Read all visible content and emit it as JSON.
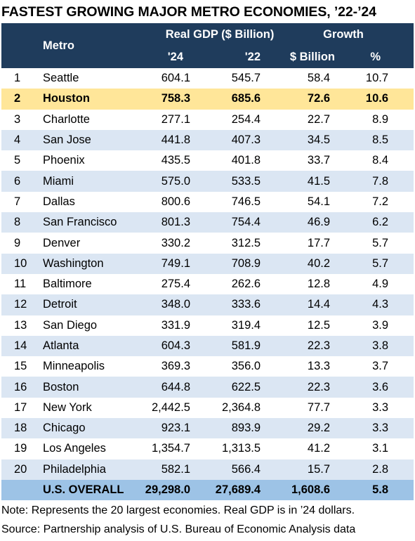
{
  "title": "FASTEST GROWING MAJOR METRO ECONOMIES, ’22-’24",
  "header": {
    "metro": "Metro",
    "gdp_group": "Real GDP ($ Billion)",
    "growth_group": "Growth",
    "gdp24": "'24",
    "gdp22": "'22",
    "dollar": "$ Billion",
    "pct": "%"
  },
  "colors": {
    "header_bg": "#1f3c5c",
    "stripe": "#dbe6f3",
    "highlight": "#ffe699",
    "total": "#9dc3e6"
  },
  "chart_data": {
    "type": "table",
    "title": "FASTEST GROWING MAJOR METRO ECONOMIES, ’22-’24",
    "columns": [
      "",
      "Metro",
      "'24",
      "'22",
      "$ Billion",
      "%"
    ],
    "rows": [
      {
        "rank": "1",
        "metro": "Seattle",
        "gdp24": "604.1",
        "gdp22": "545.7",
        "dollar": "58.4",
        "pct": "10.7"
      },
      {
        "rank": "2",
        "metro": "Houston",
        "gdp24": "758.3",
        "gdp22": "685.6",
        "dollar": "72.6",
        "pct": "10.6",
        "highlight": true
      },
      {
        "rank": "3",
        "metro": "Charlotte",
        "gdp24": "277.1",
        "gdp22": "254.4",
        "dollar": "22.7",
        "pct": "8.9"
      },
      {
        "rank": "4",
        "metro": "San Jose",
        "gdp24": "441.8",
        "gdp22": "407.3",
        "dollar": "34.5",
        "pct": "8.5"
      },
      {
        "rank": "5",
        "metro": "Phoenix",
        "gdp24": "435.5",
        "gdp22": "401.8",
        "dollar": "33.7",
        "pct": "8.4"
      },
      {
        "rank": "6",
        "metro": "Miami",
        "gdp24": "575.0",
        "gdp22": "533.5",
        "dollar": "41.5",
        "pct": "7.8"
      },
      {
        "rank": "7",
        "metro": "Dallas",
        "gdp24": "800.6",
        "gdp22": "746.5",
        "dollar": "54.1",
        "pct": "7.2"
      },
      {
        "rank": "8",
        "metro": "San Francisco",
        "gdp24": "801.3",
        "gdp22": "754.4",
        "dollar": "46.9",
        "pct": "6.2"
      },
      {
        "rank": "9",
        "metro": "Denver",
        "gdp24": "330.2",
        "gdp22": "312.5",
        "dollar": "17.7",
        "pct": "5.7"
      },
      {
        "rank": "10",
        "metro": "Washington",
        "gdp24": "749.1",
        "gdp22": "708.9",
        "dollar": "40.2",
        "pct": "5.7"
      },
      {
        "rank": "11",
        "metro": "Baltimore",
        "gdp24": "275.4",
        "gdp22": "262.6",
        "dollar": "12.8",
        "pct": "4.9"
      },
      {
        "rank": "12",
        "metro": "Detroit",
        "gdp24": "348.0",
        "gdp22": "333.6",
        "dollar": "14.4",
        "pct": "4.3"
      },
      {
        "rank": "13",
        "metro": "San Diego",
        "gdp24": "331.9",
        "gdp22": "319.4",
        "dollar": "12.5",
        "pct": "3.9"
      },
      {
        "rank": "14",
        "metro": "Atlanta",
        "gdp24": "604.3",
        "gdp22": "581.9",
        "dollar": "22.3",
        "pct": "3.8"
      },
      {
        "rank": "15",
        "metro": "Minneapolis",
        "gdp24": "369.3",
        "gdp22": "356.0",
        "dollar": "13.3",
        "pct": "3.7"
      },
      {
        "rank": "16",
        "metro": "Boston",
        "gdp24": "644.8",
        "gdp22": "622.5",
        "dollar": "22.3",
        "pct": "3.6"
      },
      {
        "rank": "17",
        "metro": "New York",
        "gdp24": "2,442.5",
        "gdp22": "2,364.8",
        "dollar": "77.7",
        "pct": "3.3"
      },
      {
        "rank": "18",
        "metro": "Chicago",
        "gdp24": "923.1",
        "gdp22": "893.9",
        "dollar": "29.2",
        "pct": "3.3"
      },
      {
        "rank": "19",
        "metro": "Los Angeles",
        "gdp24": "1,354.7",
        "gdp22": "1,313.5",
        "dollar": "41.2",
        "pct": "3.1"
      },
      {
        "rank": "20",
        "metro": "Philadelphia",
        "gdp24": "582.1",
        "gdp22": "566.4",
        "dollar": "15.7",
        "pct": "2.8"
      }
    ],
    "total": {
      "rank": "",
      "metro": "U.S. OVERALL",
      "gdp24": "29,298.0",
      "gdp22": "27,689.4",
      "dollar": "1,608.6",
      "pct": "5.8"
    }
  },
  "notes": {
    "note": "Note: Represents the 20 largest economies. Real GDP is in ’24 dollars.",
    "source": "Source: Partnership analysis of U.S. Bureau of Economic Analysis data"
  }
}
